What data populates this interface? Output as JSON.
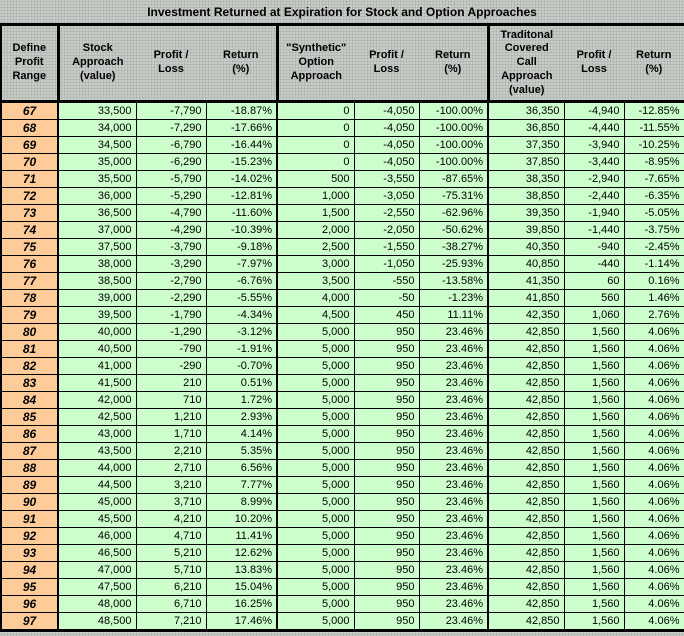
{
  "title": "Investment Returned at Expiration for Stock and Option Approaches",
  "header": {
    "columns": [
      "Define\nProfit\nRange",
      "Stock\nApproach\n(value)",
      "Profit /\nLoss",
      "Return\n(%)",
      "\"Synthetic\"\nOption\nApproach",
      "Profit /\nLoss",
      "Return\n(%)",
      "Traditonal\nCovered\nCall\nApproach\n(value)",
      "Profit /\nLoss",
      "Return\n(%)"
    ]
  },
  "table": {
    "rows": [
      [
        "67",
        "33,500",
        "-7,790",
        "-18.87%",
        "0",
        "-4,050",
        "-100.00%",
        "36,350",
        "-4,940",
        "-12.85%"
      ],
      [
        "68",
        "34,000",
        "-7,290",
        "-17.66%",
        "0",
        "-4,050",
        "-100.00%",
        "36,850",
        "-4,440",
        "-11.55%"
      ],
      [
        "69",
        "34,500",
        "-6,790",
        "-16.44%",
        "0",
        "-4,050",
        "-100.00%",
        "37,350",
        "-3,940",
        "-10.25%"
      ],
      [
        "70",
        "35,000",
        "-6,290",
        "-15.23%",
        "0",
        "-4,050",
        "-100.00%",
        "37,850",
        "-3,440",
        "-8.95%"
      ],
      [
        "71",
        "35,500",
        "-5,790",
        "-14.02%",
        "500",
        "-3,550",
        "-87.65%",
        "38,350",
        "-2,940",
        "-7.65%"
      ],
      [
        "72",
        "36,000",
        "-5,290",
        "-12.81%",
        "1,000",
        "-3,050",
        "-75.31%",
        "38,850",
        "-2,440",
        "-6.35%"
      ],
      [
        "73",
        "36,500",
        "-4,790",
        "-11.60%",
        "1,500",
        "-2,550",
        "-62.96%",
        "39,350",
        "-1,940",
        "-5.05%"
      ],
      [
        "74",
        "37,000",
        "-4,290",
        "-10.39%",
        "2,000",
        "-2,050",
        "-50.62%",
        "39,850",
        "-1,440",
        "-3.75%"
      ],
      [
        "75",
        "37,500",
        "-3,790",
        "-9.18%",
        "2,500",
        "-1,550",
        "-38.27%",
        "40,350",
        "-940",
        "-2.45%"
      ],
      [
        "76",
        "38,000",
        "-3,290",
        "-7.97%",
        "3,000",
        "-1,050",
        "-25.93%",
        "40,850",
        "-440",
        "-1.14%"
      ],
      [
        "77",
        "38,500",
        "-2,790",
        "-6.76%",
        "3,500",
        "-550",
        "-13.58%",
        "41,350",
        "60",
        "0.16%"
      ],
      [
        "78",
        "39,000",
        "-2,290",
        "-5.55%",
        "4,000",
        "-50",
        "-1.23%",
        "41,850",
        "560",
        "1.46%"
      ],
      [
        "79",
        "39,500",
        "-1,790",
        "-4.34%",
        "4,500",
        "450",
        "11.11%",
        "42,350",
        "1,060",
        "2.76%"
      ],
      [
        "80",
        "40,000",
        "-1,290",
        "-3.12%",
        "5,000",
        "950",
        "23.46%",
        "42,850",
        "1,560",
        "4.06%"
      ],
      [
        "81",
        "40,500",
        "-790",
        "-1.91%",
        "5,000",
        "950",
        "23.46%",
        "42,850",
        "1,560",
        "4.06%"
      ],
      [
        "82",
        "41,000",
        "-290",
        "-0.70%",
        "5,000",
        "950",
        "23.46%",
        "42,850",
        "1,560",
        "4.06%"
      ],
      [
        "83",
        "41,500",
        "210",
        "0.51%",
        "5,000",
        "950",
        "23.46%",
        "42,850",
        "1,560",
        "4.06%"
      ],
      [
        "84",
        "42,000",
        "710",
        "1.72%",
        "5,000",
        "950",
        "23.46%",
        "42,850",
        "1,560",
        "4.06%"
      ],
      [
        "85",
        "42,500",
        "1,210",
        "2.93%",
        "5,000",
        "950",
        "23.46%",
        "42,850",
        "1,560",
        "4.06%"
      ],
      [
        "86",
        "43,000",
        "1,710",
        "4.14%",
        "5,000",
        "950",
        "23.46%",
        "42,850",
        "1,560",
        "4.06%"
      ],
      [
        "87",
        "43,500",
        "2,210",
        "5.35%",
        "5,000",
        "950",
        "23.46%",
        "42,850",
        "1,560",
        "4.06%"
      ],
      [
        "88",
        "44,000",
        "2,710",
        "6.56%",
        "5,000",
        "950",
        "23.46%",
        "42,850",
        "1,560",
        "4.06%"
      ],
      [
        "89",
        "44,500",
        "3,210",
        "7.77%",
        "5,000",
        "950",
        "23.46%",
        "42,850",
        "1,560",
        "4.06%"
      ],
      [
        "90",
        "45,000",
        "3,710",
        "8.99%",
        "5,000",
        "950",
        "23.46%",
        "42,850",
        "1,560",
        "4.06%"
      ],
      [
        "91",
        "45,500",
        "4,210",
        "10.20%",
        "5,000",
        "950",
        "23.46%",
        "42,850",
        "1,560",
        "4.06%"
      ],
      [
        "92",
        "46,000",
        "4,710",
        "11.41%",
        "5,000",
        "950",
        "23.46%",
        "42,850",
        "1,560",
        "4.06%"
      ],
      [
        "93",
        "46,500",
        "5,210",
        "12.62%",
        "5,000",
        "950",
        "23.46%",
        "42,850",
        "1,560",
        "4.06%"
      ],
      [
        "94",
        "47,000",
        "5,710",
        "13.83%",
        "5,000",
        "950",
        "23.46%",
        "42,850",
        "1,560",
        "4.06%"
      ],
      [
        "95",
        "47,500",
        "6,210",
        "15.04%",
        "5,000",
        "950",
        "23.46%",
        "42,850",
        "1,560",
        "4.06%"
      ],
      [
        "96",
        "48,000",
        "6,710",
        "16.25%",
        "5,000",
        "950",
        "23.46%",
        "42,850",
        "1,560",
        "4.06%"
      ],
      [
        "97",
        "48,500",
        "7,210",
        "17.46%",
        "5,000",
        "950",
        "23.46%",
        "42,850",
        "1,560",
        "4.06%"
      ]
    ]
  },
  "colors": {
    "header_bg": "#c7ccc7",
    "row_label_bg": "#ffcc99",
    "cell_bg": "#ccffcc",
    "border": "#000000"
  }
}
